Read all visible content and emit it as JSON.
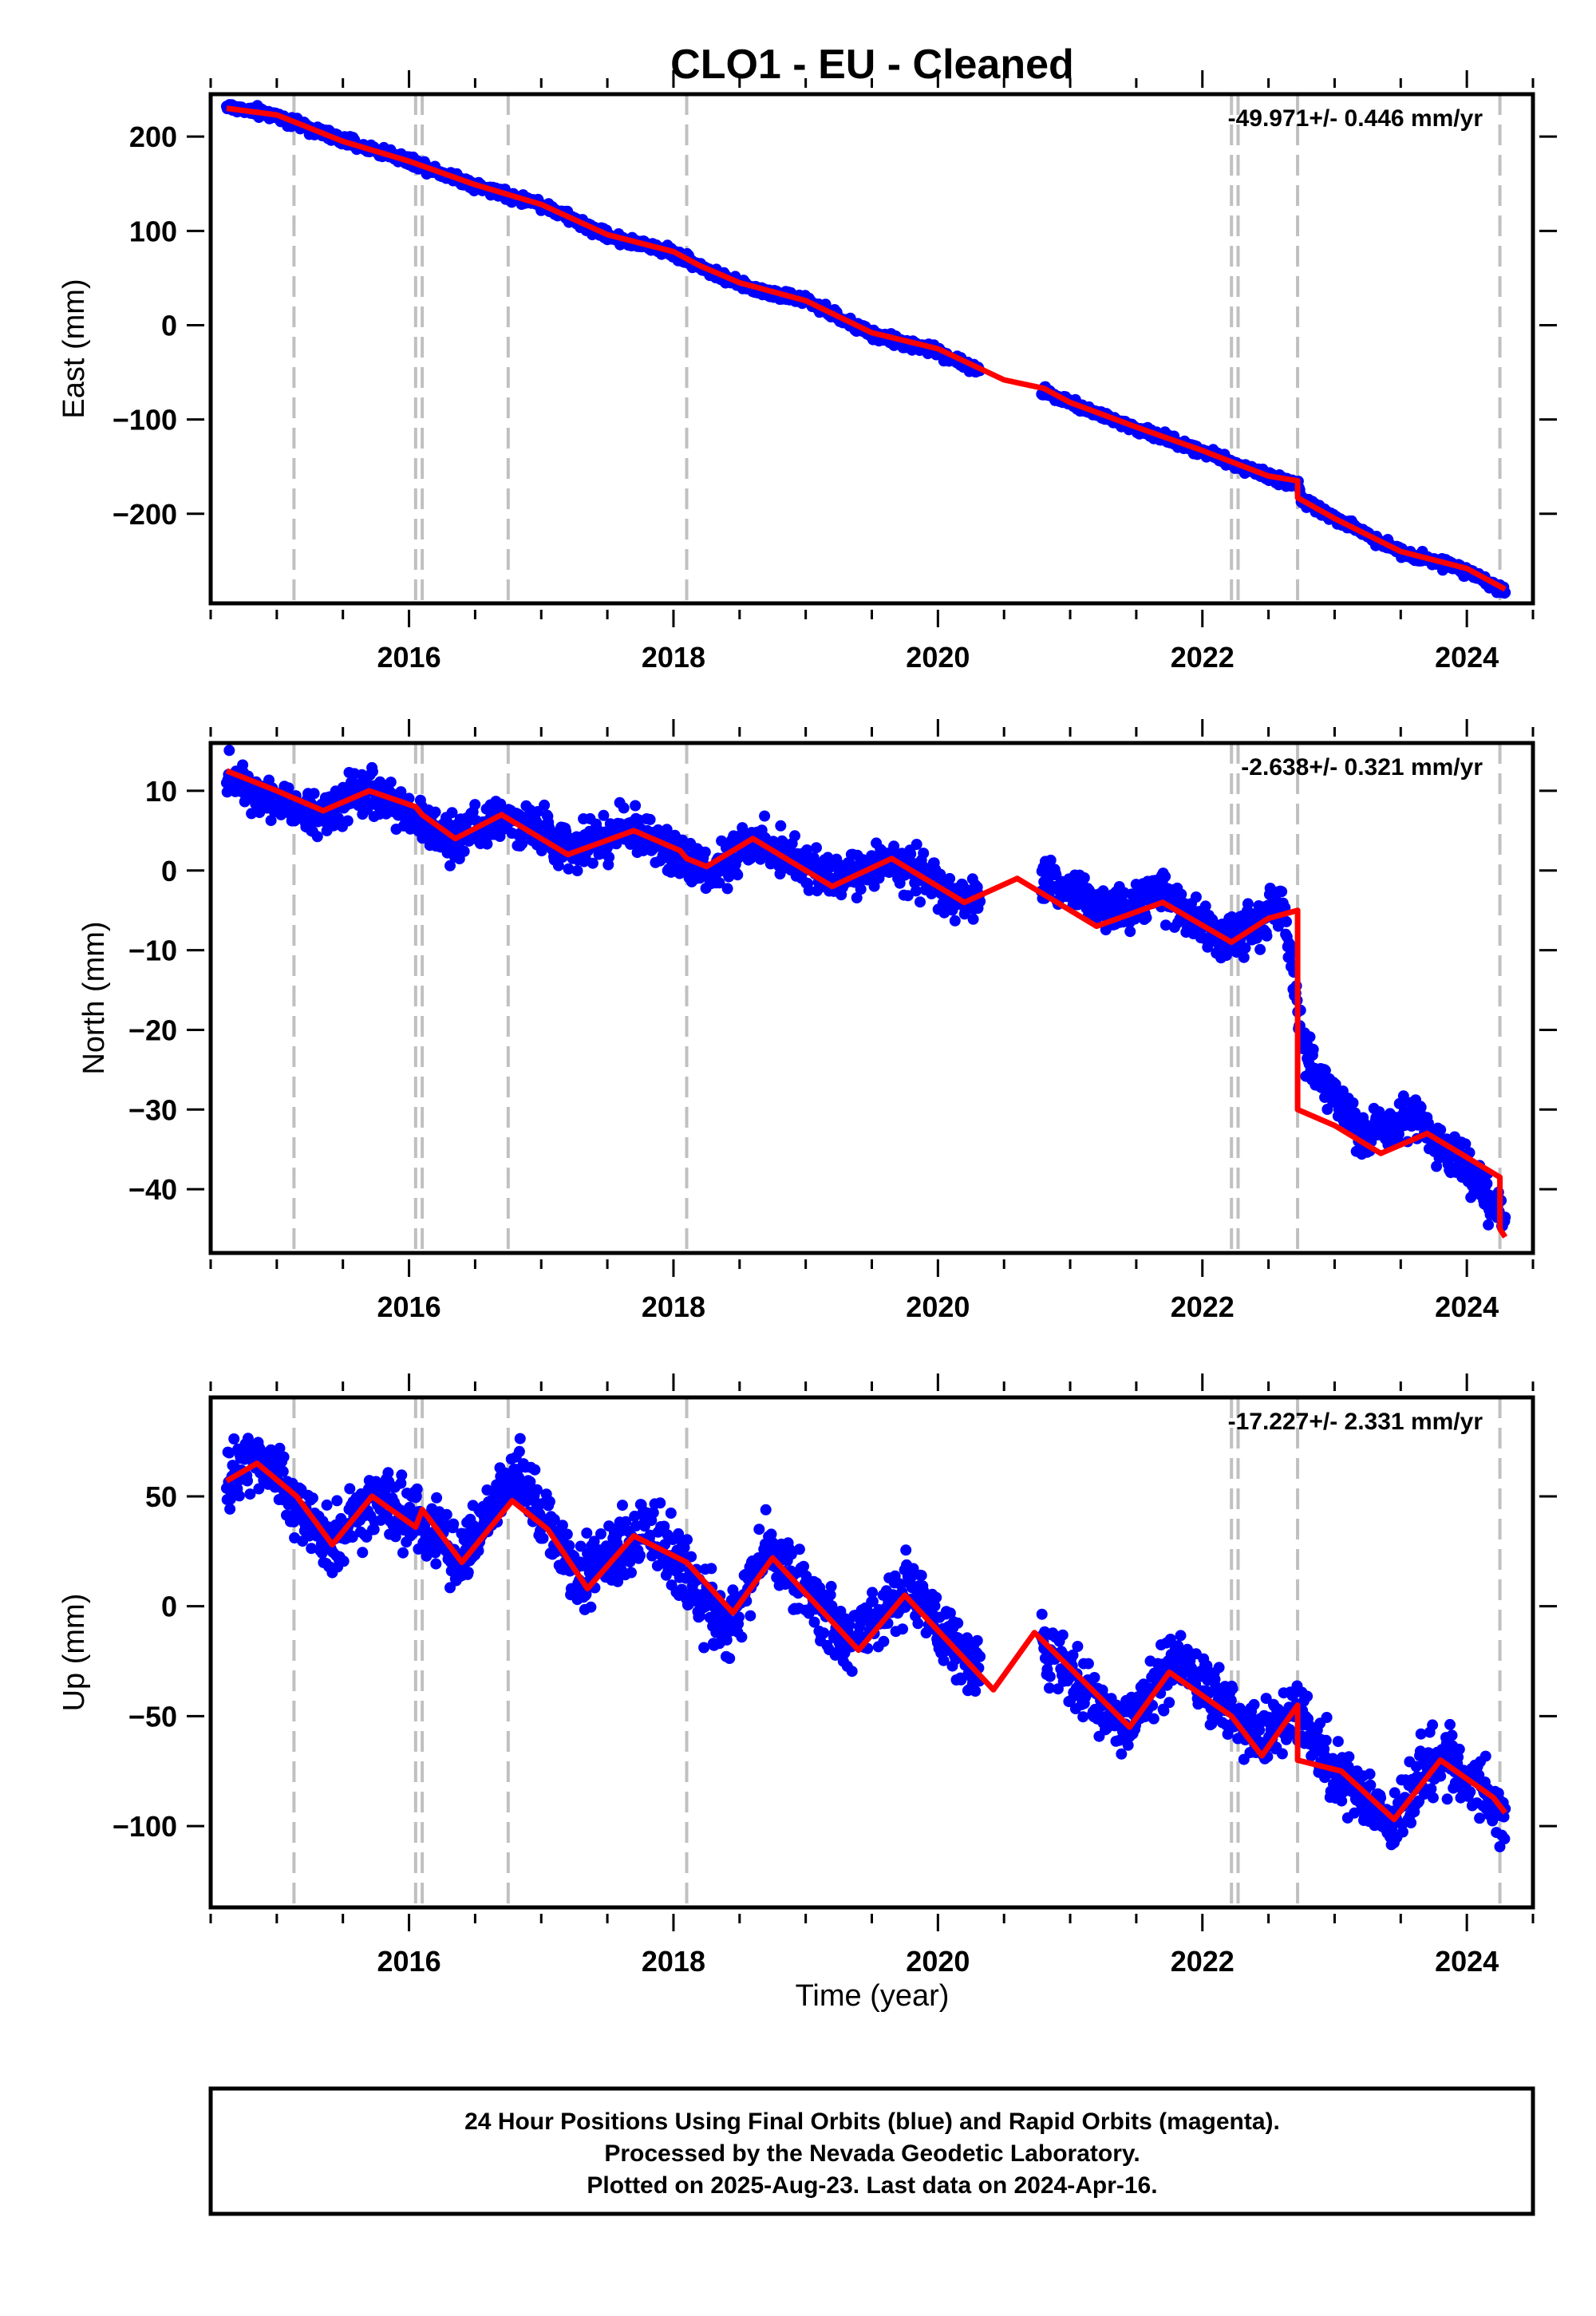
{
  "title": "CLO1  - EU - Cleaned",
  "xlabel": "Time (year)",
  "footer": [
    "24 Hour Positions Using Final Orbits (blue) and Rapid Orbits (magenta).",
    "Processed by the Nevada Geodetic Laboratory.",
    "Plotted on 2025-Aug-23. Last data on 2024-Apr-16."
  ],
  "colors": {
    "points": "#0000ff",
    "model": "#ff0000",
    "markers": "#c0c0c0",
    "frame": "#000000"
  },
  "chart_data": [
    {
      "type": "scatter",
      "ylabel": "East (mm)",
      "rate_label": "-49.971+/- 0.446 mm/yr",
      "xlim": [
        2014.5,
        2024.5
      ],
      "ylim": [
        -295,
        245
      ],
      "x_ticks": [
        "2016",
        "2018",
        "2020",
        "2022",
        "2024"
      ],
      "y_ticks": [
        -200,
        -100,
        0,
        100,
        200
      ],
      "y_tick_labels": [
        "−200",
        "−100",
        "0",
        "100",
        "200"
      ],
      "event_lines": [
        2015.13,
        2016.05,
        2016.1,
        2016.75,
        2018.1,
        2022.22,
        2022.27,
        2022.72,
        2024.25
      ],
      "series": [
        {
          "kind": "points",
          "x": [
            2014.62,
            2015.0,
            2015.5,
            2016.0,
            2016.5,
            2017.0,
            2017.5,
            2018.0,
            2018.5,
            2019.0,
            2019.5,
            2020.0,
            2020.4,
            2020.8,
            2021.0,
            2021.5,
            2022.0,
            2022.5,
            2022.72,
            2022.75,
            2023.0,
            2023.5,
            2024.0,
            2024.29
          ],
          "y": [
            232,
            222,
            196,
            175,
            148,
            128,
            95,
            77,
            42,
            26,
            -10,
            -28,
            -55,
            -70,
            -82,
            -110,
            -133,
            -161,
            -168,
            -185,
            -205,
            -240,
            -260,
            -284
          ]
        },
        {
          "kind": "line",
          "x": [
            2014.62,
            2015.0,
            2015.5,
            2016.0,
            2016.5,
            2017.0,
            2017.5,
            2018.0,
            2018.2,
            2018.5,
            2019.0,
            2019.5,
            2020.0,
            2020.5,
            2020.8,
            2021.0,
            2021.5,
            2022.0,
            2022.5,
            2022.72,
            2022.72,
            2023.0,
            2023.5,
            2024.0,
            2024.29
          ],
          "y": [
            230,
            223,
            195,
            174,
            149,
            128,
            96,
            78,
            63,
            45,
            26,
            -8,
            -25,
            -58,
            -67,
            -82,
            -108,
            -133,
            -160,
            -165,
            -183,
            -205,
            -240,
            -258,
            -280
          ]
        }
      ]
    },
    {
      "type": "scatter",
      "ylabel": "North (mm)",
      "rate_label": "-2.638+/- 0.321 mm/yr",
      "xlim": [
        2014.5,
        2024.5
      ],
      "ylim": [
        -48,
        16
      ],
      "x_ticks": [
        "2016",
        "2018",
        "2020",
        "2022",
        "2024"
      ],
      "y_ticks": [
        -40,
        -30,
        -20,
        -10,
        0,
        10
      ],
      "y_tick_labels": [
        "−40",
        "−30",
        "−20",
        "−10",
        "0",
        "10"
      ],
      "event_lines": [
        2015.13,
        2016.05,
        2016.1,
        2016.75,
        2018.1,
        2022.22,
        2022.27,
        2022.72,
        2024.25
      ],
      "series": [
        {
          "kind": "points",
          "x": [
            2014.62,
            2015.0,
            2015.35,
            2015.7,
            2016.1,
            2016.35,
            2016.7,
            2017.2,
            2017.7,
            2018.1,
            2018.3,
            2018.6,
            2019.2,
            2019.7,
            2020.2,
            2020.8,
            2021.3,
            2021.7,
            2022.2,
            2022.6,
            2022.73,
            2022.8,
            2023.2,
            2023.6,
            2024.0,
            2024.29
          ],
          "y": [
            12,
            9,
            7,
            10,
            6,
            4,
            7,
            3,
            5,
            1,
            0,
            4,
            -1,
            1,
            -4,
            -1,
            -5,
            -3,
            -9,
            -4,
            -18,
            -24,
            -33,
            -31,
            -37,
            -44
          ]
        },
        {
          "kind": "line",
          "x": [
            2014.62,
            2015.0,
            2015.35,
            2015.7,
            2016.05,
            2016.1,
            2016.35,
            2016.7,
            2017.2,
            2017.7,
            2018.05,
            2018.1,
            2018.25,
            2018.6,
            2019.2,
            2019.65,
            2020.2,
            2020.6,
            2021.2,
            2021.7,
            2022.22,
            2022.5,
            2022.72,
            2022.72,
            2023.0,
            2023.35,
            2023.7,
            2024.25,
            2024.25,
            2024.29
          ],
          "y": [
            12.5,
            10,
            7.5,
            10,
            8,
            7,
            4,
            7,
            2,
            5,
            2.5,
            1.5,
            0.5,
            4,
            -2,
            1.5,
            -4,
            -1,
            -7,
            -4,
            -9,
            -6,
            -5,
            -30,
            -32,
            -35.5,
            -33,
            -38.5,
            -45,
            -46
          ]
        }
      ]
    },
    {
      "type": "scatter",
      "ylabel": "Up (mm)",
      "rate_label": "-17.227+/- 2.331 mm/yr",
      "xlim": [
        2014.5,
        2024.5
      ],
      "ylim": [
        -137,
        95
      ],
      "x_ticks": [
        "2016",
        "2018",
        "2020",
        "2022",
        "2024"
      ],
      "y_ticks": [
        -100,
        -50,
        0,
        50
      ],
      "y_tick_labels": [
        "−100",
        "−50",
        "0",
        "50"
      ],
      "event_lines": [
        2015.13,
        2016.05,
        2016.1,
        2016.75,
        2018.1,
        2022.22,
        2022.27,
        2022.72,
        2024.25
      ],
      "series": [
        {
          "kind": "points",
          "x": [
            2014.62,
            2014.8,
            2015.1,
            2015.4,
            2015.75,
            2016.1,
            2016.4,
            2016.8,
            2017.3,
            2017.8,
            2018.1,
            2018.4,
            2018.7,
            2019.3,
            2019.8,
            2020.2,
            2020.8,
            2021.4,
            2021.8,
            2022.4,
            2022.7,
            2023.0,
            2023.4,
            2023.8,
            2024.29
          ],
          "y": [
            52,
            72,
            50,
            28,
            48,
            38,
            22,
            62,
            12,
            35,
            15,
            -10,
            28,
            -15,
            8,
            -25,
            -18,
            -55,
            -22,
            -60,
            -50,
            -75,
            -97,
            -68,
            -95
          ]
        },
        {
          "kind": "line",
          "x": [
            2014.62,
            2014.85,
            2015.15,
            2015.42,
            2015.72,
            2016.05,
            2016.1,
            2016.4,
            2016.78,
            2017.05,
            2017.35,
            2017.7,
            2018.1,
            2018.45,
            2018.75,
            2019.4,
            2019.75,
            2020.42,
            2020.73,
            2021.45,
            2021.75,
            2022.22,
            2022.45,
            2022.72,
            2022.72,
            2023.05,
            2023.45,
            2023.8,
            2024.2,
            2024.29
          ],
          "y": [
            57,
            65,
            50,
            28,
            50,
            36,
            44,
            20,
            48,
            35,
            8,
            32,
            20,
            -3,
            22,
            -20,
            5,
            -38,
            -12,
            -55,
            -30,
            -50,
            -68,
            -45,
            -70,
            -75,
            -97,
            -70,
            -87,
            -94
          ]
        }
      ]
    }
  ]
}
